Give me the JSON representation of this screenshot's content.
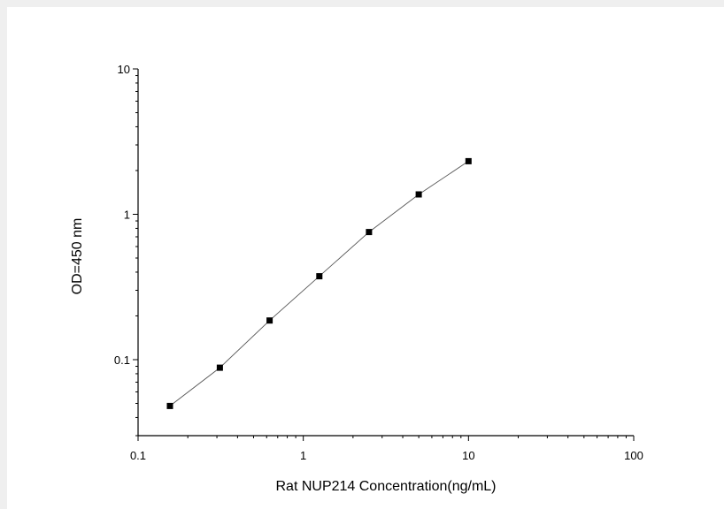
{
  "chart_data": {
    "type": "line",
    "xlabel": "Rat NUP214 Concentration(ng/mL)",
    "ylabel": "OD=450 nm",
    "x_scale": "log",
    "y_scale": "log",
    "xlim": [
      0.1,
      100
    ],
    "ylim": [
      0.03,
      10
    ],
    "x_ticks": [
      "0.1",
      "1",
      "10",
      "100"
    ],
    "y_ticks": [
      "0.1",
      "1",
      "10"
    ],
    "grid": false,
    "series": [
      {
        "x": [
          0.156,
          0.3125,
          0.625,
          1.25,
          2.5,
          5,
          10
        ],
        "y": [
          0.048,
          0.088,
          0.186,
          0.375,
          0.755,
          1.37,
          2.32
        ],
        "marker": "square",
        "color": "#000000",
        "line_color": "#555555"
      }
    ]
  }
}
